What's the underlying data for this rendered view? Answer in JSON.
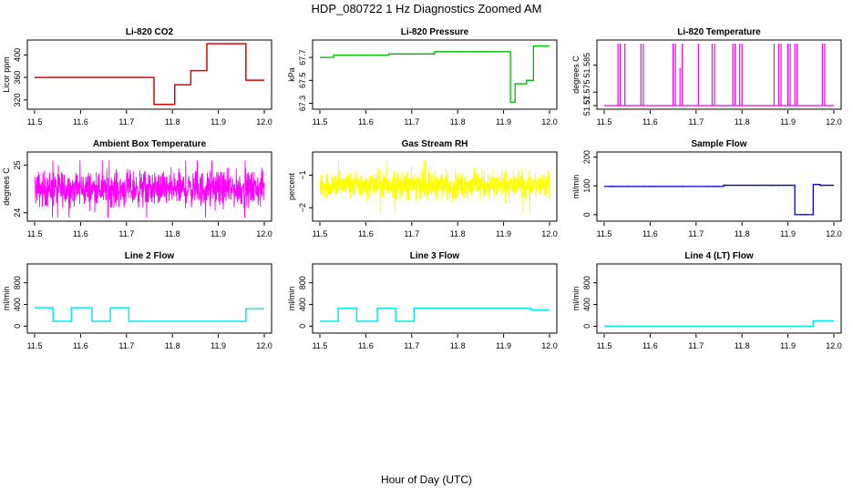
{
  "figure": {
    "title": "HDP_080722  1 Hz Diagnostics Zoomed AM",
    "xlabel": "Hour of Day (UTC)"
  },
  "chart_data": [
    {
      "type": "line",
      "id": "co2",
      "title": "Li-820 CO2",
      "ylabel": "Licor ppm",
      "color": "#dd0000",
      "style": "step",
      "xlim": [
        11.5,
        12.0
      ],
      "ylim": [
        310,
        420
      ],
      "xticks": [
        11.5,
        11.6,
        11.7,
        11.8,
        11.9,
        12.0
      ],
      "yticks": [
        320,
        360,
        400
      ],
      "x": [
        11.5,
        11.76,
        11.76,
        11.805,
        11.805,
        11.84,
        11.84,
        11.875,
        11.875,
        11.96,
        11.96,
        12.0
      ],
      "y": [
        360,
        360,
        312,
        312,
        347,
        347,
        372,
        372,
        420,
        420,
        355,
        355
      ],
      "noise": 0
    },
    {
      "type": "line",
      "id": "pressure",
      "title": "Li-820 Pressure",
      "ylabel": "kPa",
      "color": "#00bb00",
      "style": "step",
      "xlim": [
        11.5,
        12.0
      ],
      "ylim": [
        67.28,
        67.82
      ],
      "xticks": [
        11.5,
        11.6,
        11.7,
        11.8,
        11.9,
        12.0
      ],
      "yticks": [
        67.3,
        67.5,
        67.7
      ],
      "x": [
        11.5,
        11.53,
        11.53,
        11.65,
        11.65,
        11.75,
        11.75,
        11.915,
        11.915,
        11.925,
        11.925,
        11.95,
        11.95,
        11.965,
        11.965,
        12.0
      ],
      "y": [
        67.7,
        67.7,
        67.72,
        67.72,
        67.73,
        67.73,
        67.75,
        67.75,
        67.31,
        67.31,
        67.47,
        67.47,
        67.5,
        67.5,
        67.8,
        67.8
      ],
      "noise": 0.004
    },
    {
      "type": "line",
      "id": "licor-temp",
      "title": "Li-820 Temperature",
      "ylabel": "degrees C",
      "color": "#ee00ee",
      "style": "spikes",
      "xlim": [
        11.5,
        12.0
      ],
      "ylim": [
        51.57,
        51.593
      ],
      "xticks": [
        11.5,
        11.6,
        11.7,
        11.8,
        11.9,
        12.0
      ],
      "yticks": [
        51.57,
        51.575,
        51.585
      ],
      "baseline": 51.57,
      "peak": 51.593,
      "x": [
        11.53,
        11.535,
        11.545,
        11.58,
        11.585,
        11.65,
        11.655,
        11.665,
        11.67,
        11.705,
        11.735,
        11.74,
        11.78,
        11.785,
        11.795,
        11.8,
        11.87,
        11.88,
        11.885,
        11.9,
        11.905,
        11.915,
        11.92,
        11.975,
        11.98
      ],
      "y": [
        51.593,
        51.593,
        51.593,
        51.593,
        51.593,
        51.593,
        51.593,
        51.584,
        51.593,
        51.593,
        51.593,
        51.593,
        51.593,
        51.593,
        51.593,
        51.593,
        51.593,
        51.593,
        51.593,
        51.593,
        51.593,
        51.593,
        51.593,
        51.593,
        51.593
      ]
    },
    {
      "type": "line",
      "id": "box-temp",
      "title": "Ambient Box Temperature",
      "ylabel": "degrees C",
      "color": "#ff00ff",
      "style": "noise",
      "xlim": [
        11.5,
        12.0
      ],
      "ylim": [
        23.9,
        25.2
      ],
      "xticks": [
        11.5,
        11.6,
        11.7,
        11.8,
        11.9,
        12.0
      ],
      "yticks": [
        24.0,
        25.0
      ],
      "center": 24.5,
      "amplitude": 0.3,
      "min": 23.9,
      "max": 25.1
    },
    {
      "type": "line",
      "id": "rh",
      "title": "Gas Stream RH",
      "ylabel": "percent",
      "color": "#ffff00",
      "style": "noise",
      "xlim": [
        11.5,
        12.0
      ],
      "ylim": [
        -2.3,
        -0.4
      ],
      "xticks": [
        11.5,
        11.6,
        11.7,
        11.8,
        11.9,
        12.0
      ],
      "yticks": [
        -2.0,
        -1.0
      ],
      "center": -1.3,
      "amplitude": 0.35,
      "min": -2.2,
      "max": -0.55
    },
    {
      "type": "line",
      "id": "sample-flow",
      "title": "Sample Flow",
      "ylabel": "ml/min",
      "color": "#0000cc",
      "style": "step",
      "xlim": [
        11.5,
        12.0
      ],
      "ylim": [
        -10,
        205
      ],
      "xticks": [
        11.5,
        11.6,
        11.7,
        11.8,
        11.9,
        12.0
      ],
      "yticks": [
        0,
        100,
        200
      ],
      "x": [
        11.5,
        11.76,
        11.76,
        11.915,
        11.915,
        11.955,
        11.955,
        11.97,
        11.97,
        12.0
      ],
      "y": [
        98,
        98,
        102,
        102,
        0,
        0,
        105,
        105,
        102,
        102
      ],
      "noise": 1
    },
    {
      "type": "line",
      "id": "line2-flow",
      "title": "Line 2 Flow",
      "ylabel": "ml/min",
      "color": "#00eeee",
      "style": "step",
      "xlim": [
        11.5,
        12.0
      ],
      "ylim": [
        -60,
        1080
      ],
      "xticks": [
        11.5,
        11.6,
        11.7,
        11.8,
        11.9,
        12.0
      ],
      "yticks": [
        0,
        400,
        800
      ],
      "x": [
        11.5,
        11.54,
        11.54,
        11.58,
        11.58,
        11.625,
        11.625,
        11.665,
        11.665,
        11.705,
        11.705,
        11.96,
        11.96,
        12.0
      ],
      "y": [
        340,
        340,
        90,
        90,
        340,
        340,
        90,
        90,
        340,
        340,
        90,
        90,
        320,
        320
      ],
      "noise": 0
    },
    {
      "type": "line",
      "id": "line3-flow",
      "title": "Line 3 Flow",
      "ylabel": "ml/min",
      "color": "#00eeee",
      "style": "step",
      "xlim": [
        11.5,
        12.0
      ],
      "ylim": [
        -60,
        1080
      ],
      "xticks": [
        11.5,
        11.6,
        11.7,
        11.8,
        11.9,
        12.0
      ],
      "yticks": [
        0,
        400,
        800
      ],
      "x": [
        11.5,
        11.54,
        11.54,
        11.58,
        11.58,
        11.625,
        11.625,
        11.665,
        11.665,
        11.705,
        11.705,
        11.96,
        11.96,
        12.0
      ],
      "y": [
        90,
        90,
        330,
        330,
        90,
        90,
        330,
        330,
        90,
        90,
        330,
        330,
        300,
        300
      ],
      "noise": 0
    },
    {
      "type": "line",
      "id": "line4-flow",
      "title": "Line 4 (LT) Flow",
      "ylabel": "ml/min",
      "color": "#00eeee",
      "style": "step",
      "xlim": [
        11.5,
        12.0
      ],
      "ylim": [
        -60,
        1080
      ],
      "xticks": [
        11.5,
        11.6,
        11.7,
        11.8,
        11.9,
        12.0
      ],
      "yticks": [
        0,
        400,
        800
      ],
      "x": [
        11.5,
        11.955,
        11.955,
        12.0
      ],
      "y": [
        0,
        0,
        100,
        100
      ],
      "noise": 0
    }
  ]
}
